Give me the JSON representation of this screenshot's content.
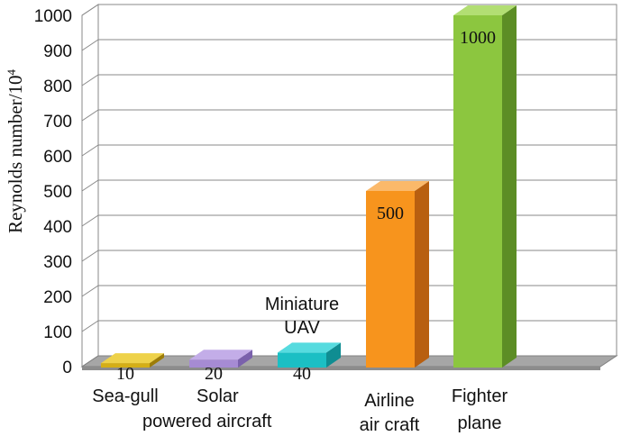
{
  "chart_data": {
    "type": "bar",
    "ylabel_main": "Reynolds number/10",
    "ylabel_sup": "4",
    "ylim": [
      0,
      1000
    ],
    "yticks": [
      "0",
      "100",
      "200",
      "300",
      "400",
      "500",
      "600",
      "700",
      "800",
      "900",
      "1000"
    ],
    "grid": true,
    "categories": [
      {
        "lines": [
          "Sea-gull"
        ]
      },
      {
        "lines": [
          "Solar",
          "powered aircraft"
        ]
      },
      {
        "lines": [
          "Miniature",
          "UAV"
        ]
      },
      {
        "lines": [
          "Airline",
          "air craft"
        ]
      },
      {
        "lines": [
          "Fighter",
          "plane"
        ]
      }
    ],
    "values": [
      10,
      20,
      40,
      500,
      1000
    ],
    "value_labels": [
      "10",
      "20",
      "40",
      "500",
      "1000"
    ],
    "colors": [
      {
        "front": "#D4AE16",
        "side": "#9C7C08",
        "top": "#EED24A"
      },
      {
        "front": "#A68BD3",
        "side": "#7A61AC",
        "top": "#C3ADE8"
      },
      {
        "front": "#1BBFC4",
        "side": "#0F8D92",
        "top": "#56DBDF"
      },
      {
        "front": "#F7941D",
        "side": "#B85F10",
        "top": "#FBB96A"
      },
      {
        "front": "#8CC63F",
        "side": "#5C8D25",
        "top": "#B2DE73"
      }
    ]
  }
}
